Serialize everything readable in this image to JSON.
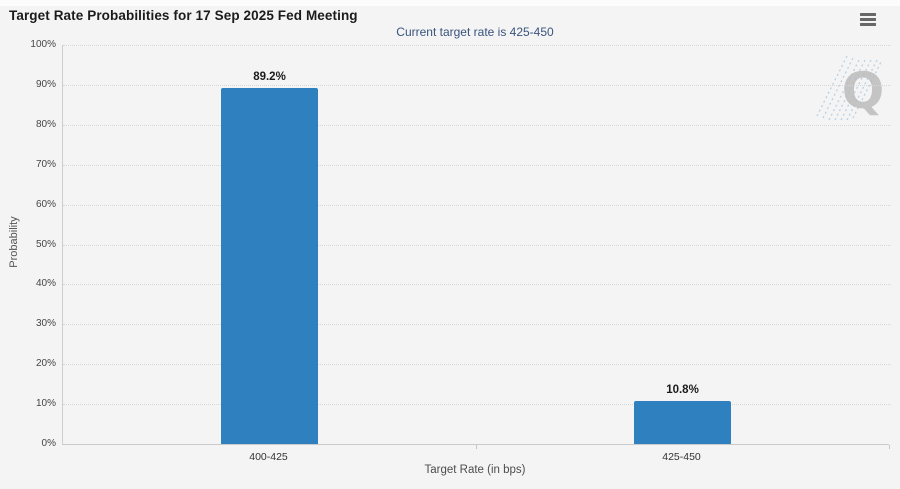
{
  "header": {
    "menu_icon": "hamburger-menu"
  },
  "chart_data": {
    "type": "bar",
    "title": "Target Rate Probabilities for 17 Sep 2025 Fed Meeting",
    "subtitle": "Current target rate is 425-450",
    "categories": [
      "400-425",
      "425-450"
    ],
    "values": [
      89.2,
      10.8
    ],
    "value_labels": [
      "89.2%",
      "10.8%"
    ],
    "xlabel": "Target Rate (in bps)",
    "ylabel": "Probability",
    "ylim": [
      0,
      100
    ],
    "ytick_values": [
      0,
      10,
      20,
      30,
      40,
      50,
      60,
      70,
      80,
      90,
      100
    ],
    "ytick_labels": [
      "0%",
      "10%",
      "20%",
      "30%",
      "40%",
      "50%",
      "60%",
      "70%",
      "80%",
      "90%",
      "100%"
    ],
    "legend": "none",
    "grid": "horizontal-dotted",
    "bar_color": "#2e80bf",
    "watermark_letter": "Q"
  },
  "colors": {
    "background": "#f4f4f4",
    "bar": "#2e80bf",
    "subtitle_text": "#39547d",
    "gridline": "#d7d7d7",
    "watermark_gray": "#b9b9b9",
    "watermark_hatch": "#aecbe2"
  }
}
